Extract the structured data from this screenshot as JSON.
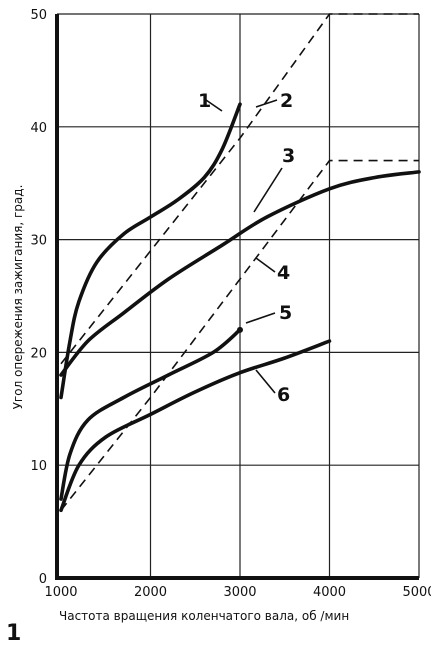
{
  "figure_number": "1",
  "chart_data": {
    "type": "line",
    "title": "",
    "xlabel": "Частота вращения коленчатого вала, об /мин",
    "ylabel": "Угол опережения зажигания, град.",
    "xlim": [
      1000,
      5000
    ],
    "ylim": [
      0,
      50
    ],
    "xticks": [
      1000,
      2000,
      3000,
      4000,
      5000
    ],
    "yticks": [
      0,
      10,
      20,
      30,
      40,
      50
    ],
    "grid": true,
    "legend": "none",
    "series": [
      {
        "name": "1",
        "style": "solid",
        "points": [
          [
            1000,
            16
          ],
          [
            1100,
            21
          ],
          [
            1200,
            24.5
          ],
          [
            1400,
            28
          ],
          [
            1700,
            30.5
          ],
          [
            2000,
            32
          ],
          [
            2300,
            33.5
          ],
          [
            2600,
            35.5
          ],
          [
            2800,
            38
          ],
          [
            3000,
            42
          ]
        ]
      },
      {
        "name": "2",
        "style": "dashed",
        "points": [
          [
            1000,
            19
          ],
          [
            2000,
            29
          ],
          [
            3000,
            39
          ],
          [
            4000,
            50
          ],
          [
            5000,
            50
          ]
        ]
      },
      {
        "name": "3",
        "style": "solid",
        "points": [
          [
            1000,
            18
          ],
          [
            1300,
            21
          ],
          [
            1700,
            23.5
          ],
          [
            2200,
            26.5
          ],
          [
            2800,
            29.5
          ],
          [
            3300,
            32
          ],
          [
            4000,
            34.5
          ],
          [
            4500,
            35.5
          ],
          [
            5000,
            36
          ]
        ]
      },
      {
        "name": "4",
        "style": "dashed",
        "points": [
          [
            1000,
            6
          ],
          [
            2000,
            16
          ],
          [
            3000,
            26.5
          ],
          [
            4000,
            37
          ],
          [
            5000,
            37
          ]
        ]
      },
      {
        "name": "5",
        "style": "solid",
        "points": [
          [
            1000,
            7
          ],
          [
            1100,
            11
          ],
          [
            1300,
            14
          ],
          [
            1700,
            16
          ],
          [
            2200,
            18
          ],
          [
            2700,
            20
          ],
          [
            3000,
            22
          ]
        ]
      },
      {
        "name": "6",
        "style": "solid",
        "points": [
          [
            1000,
            6
          ],
          [
            1200,
            10
          ],
          [
            1500,
            12.5
          ],
          [
            2000,
            14.5
          ],
          [
            2500,
            16.5
          ],
          [
            3000,
            18.2
          ],
          [
            3500,
            19.5
          ],
          [
            4000,
            21
          ]
        ]
      }
    ]
  }
}
